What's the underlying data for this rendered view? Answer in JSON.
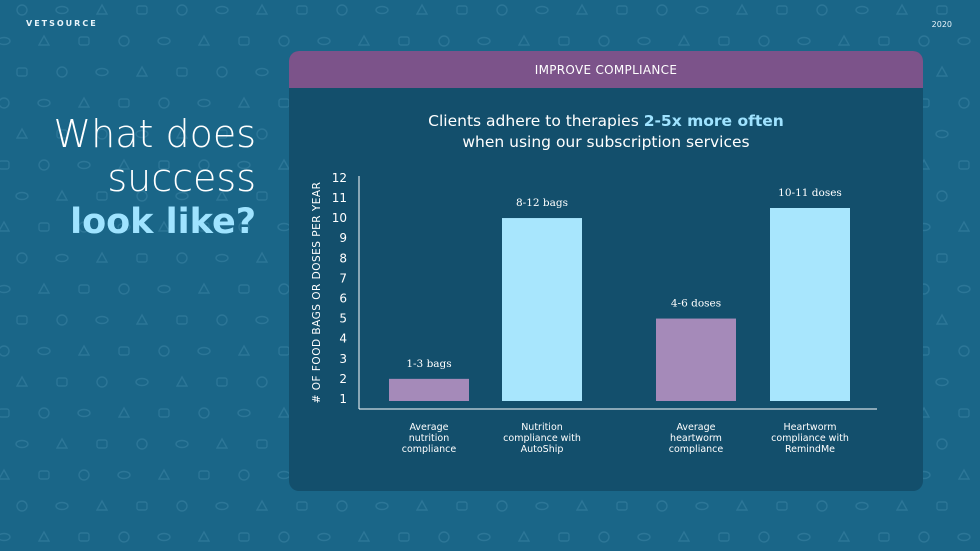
{
  "header": {
    "brand": "VETSOURCE",
    "year": "2020"
  },
  "headline": {
    "line1": "What does",
    "line2": "success",
    "line3": "look like?"
  },
  "panel": {
    "banner": "IMPROVE COMPLIANCE",
    "title_pre": "Clients adhere to therapies ",
    "title_highlight": "2-5x more often",
    "title_line2": "when using our subscription services"
  },
  "colors": {
    "bar_purple": "#a58ab9",
    "bar_blue": "#a8e6fd",
    "axis": "#ffffff",
    "accent": "#9fe3ff",
    "banner": "#7c538a"
  },
  "chart_data": {
    "type": "bar",
    "ylabel": "# OF FOOD BAGS OR DOSES PER YEAR",
    "xlabel": "",
    "yticks": [
      1,
      2,
      3,
      4,
      5,
      6,
      7,
      8,
      9,
      10,
      11,
      12
    ],
    "ylim": [
      0,
      12
    ],
    "grid": false,
    "categories": [
      [
        "Average",
        "nutrition",
        "compliance"
      ],
      [
        "Nutrition",
        "compliance with",
        "AutoShip"
      ],
      [
        "Average",
        "heartworm",
        "compliance"
      ],
      [
        "Heartworm",
        "compliance with",
        "RemindMe"
      ]
    ],
    "values": [
      2,
      10,
      5,
      10.5
    ],
    "data_labels": [
      "1-3 bags",
      "8-12 bags",
      "4-6 doses",
      "10-11 doses"
    ],
    "bar_colors": [
      "purple",
      "blue",
      "purple",
      "blue"
    ]
  }
}
